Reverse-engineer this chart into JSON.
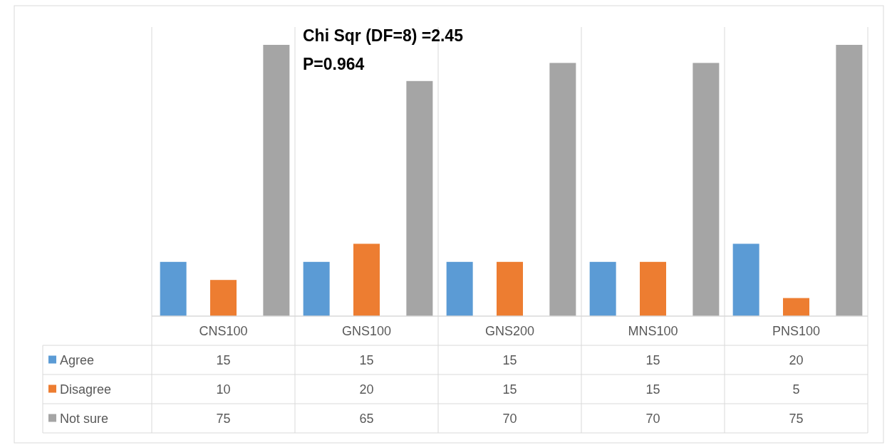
{
  "chart_data": {
    "type": "bar",
    "categories": [
      "CNS100",
      "GNS100",
      "GNS200",
      "MNS100",
      "PNS100"
    ],
    "series": [
      {
        "name": "Agree",
        "color": "#5b9bd5",
        "values": [
          15,
          15,
          15,
          15,
          20
        ]
      },
      {
        "name": "Disagree",
        "color": "#ed7d31",
        "values": [
          10,
          20,
          15,
          15,
          5
        ]
      },
      {
        "name": "Not sure",
        "color": "#a5a5a5",
        "values": [
          75,
          65,
          70,
          70,
          75
        ]
      }
    ],
    "data_labels": true,
    "legend": "bottom",
    "grid": "x",
    "annotations": [
      "Chi Sqr (DF=8) =2.45",
      "P=0.964"
    ]
  }
}
